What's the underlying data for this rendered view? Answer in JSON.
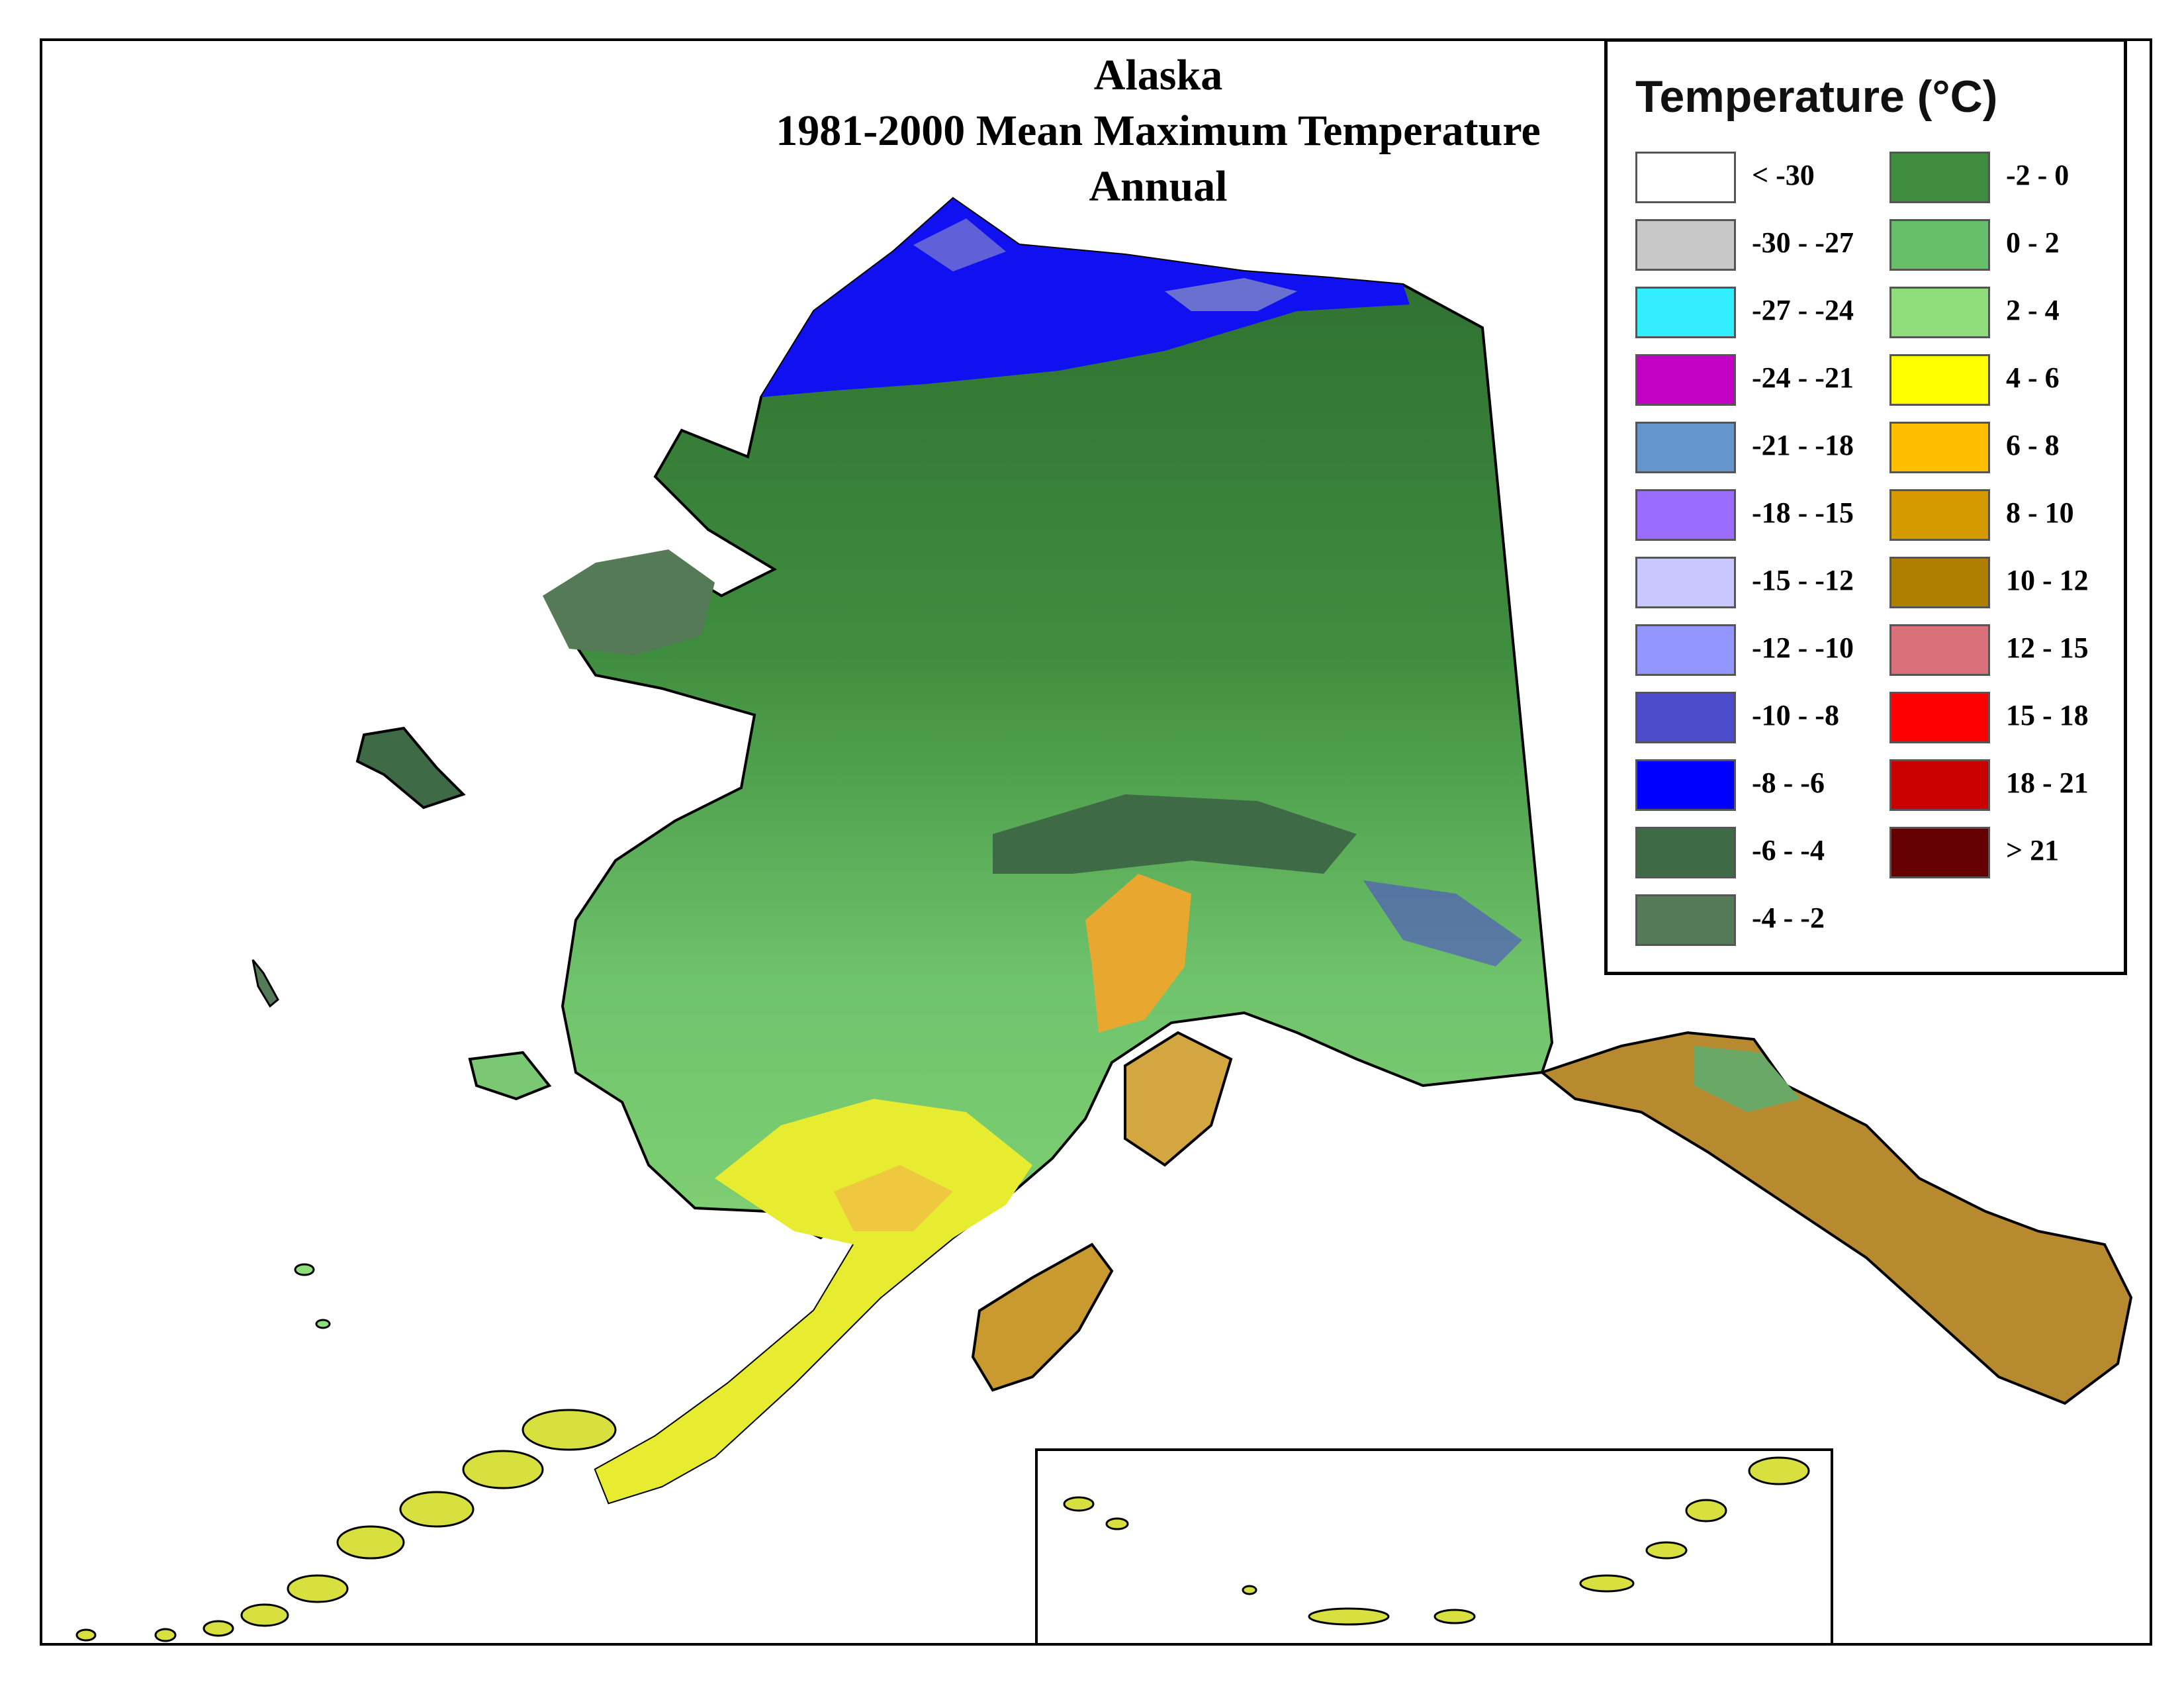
{
  "title": {
    "line1": "Alaska",
    "line2": "1981-2000 Mean Maximum Temperature",
    "line3": "Annual"
  },
  "legend": {
    "title": "Temperature (°C)",
    "items": [
      {
        "label": "< -30",
        "color": "#ffffff"
      },
      {
        "label": "-30 - -27",
        "color": "#c8c8c8"
      },
      {
        "label": "-27 - -24",
        "color": "#33eeff"
      },
      {
        "label": "-24 - -21",
        "color": "#c400c4"
      },
      {
        "label": "-21 - -18",
        "color": "#6495cc"
      },
      {
        "label": "-18 - -15",
        "color": "#9a6cff"
      },
      {
        "label": "-15 - -12",
        "color": "#c8c8ff"
      },
      {
        "label": "-12 - -10",
        "color": "#9496ff"
      },
      {
        "label": "-10 - -8",
        "color": "#4c4ccc"
      },
      {
        "label": "-8 - -6",
        "color": "#0000ff"
      },
      {
        "label": "-6 - -4",
        "color": "#3e6b46"
      },
      {
        "label": "-4 - -2",
        "color": "#557a58"
      },
      {
        "label": "-2 - 0",
        "color": "#3f8e3f"
      },
      {
        "label": "0 - 2",
        "color": "#66bf6a"
      },
      {
        "label": "2 - 4",
        "color": "#8fdc7a"
      },
      {
        "label": "4 - 6",
        "color": "#ffff00"
      },
      {
        "label": "6 - 8",
        "color": "#ffbf00"
      },
      {
        "label": "8 - 10",
        "color": "#d49a00"
      },
      {
        "label": "10 - 12",
        "color": "#ae7f00"
      },
      {
        "label": "12 - 15",
        "color": "#d9707a"
      },
      {
        "label": "15 - 18",
        "color": "#ff0000"
      },
      {
        "label": "18 - 21",
        "color": "#c80000"
      },
      {
        "label": "> 21",
        "color": "#640000"
      }
    ]
  }
}
